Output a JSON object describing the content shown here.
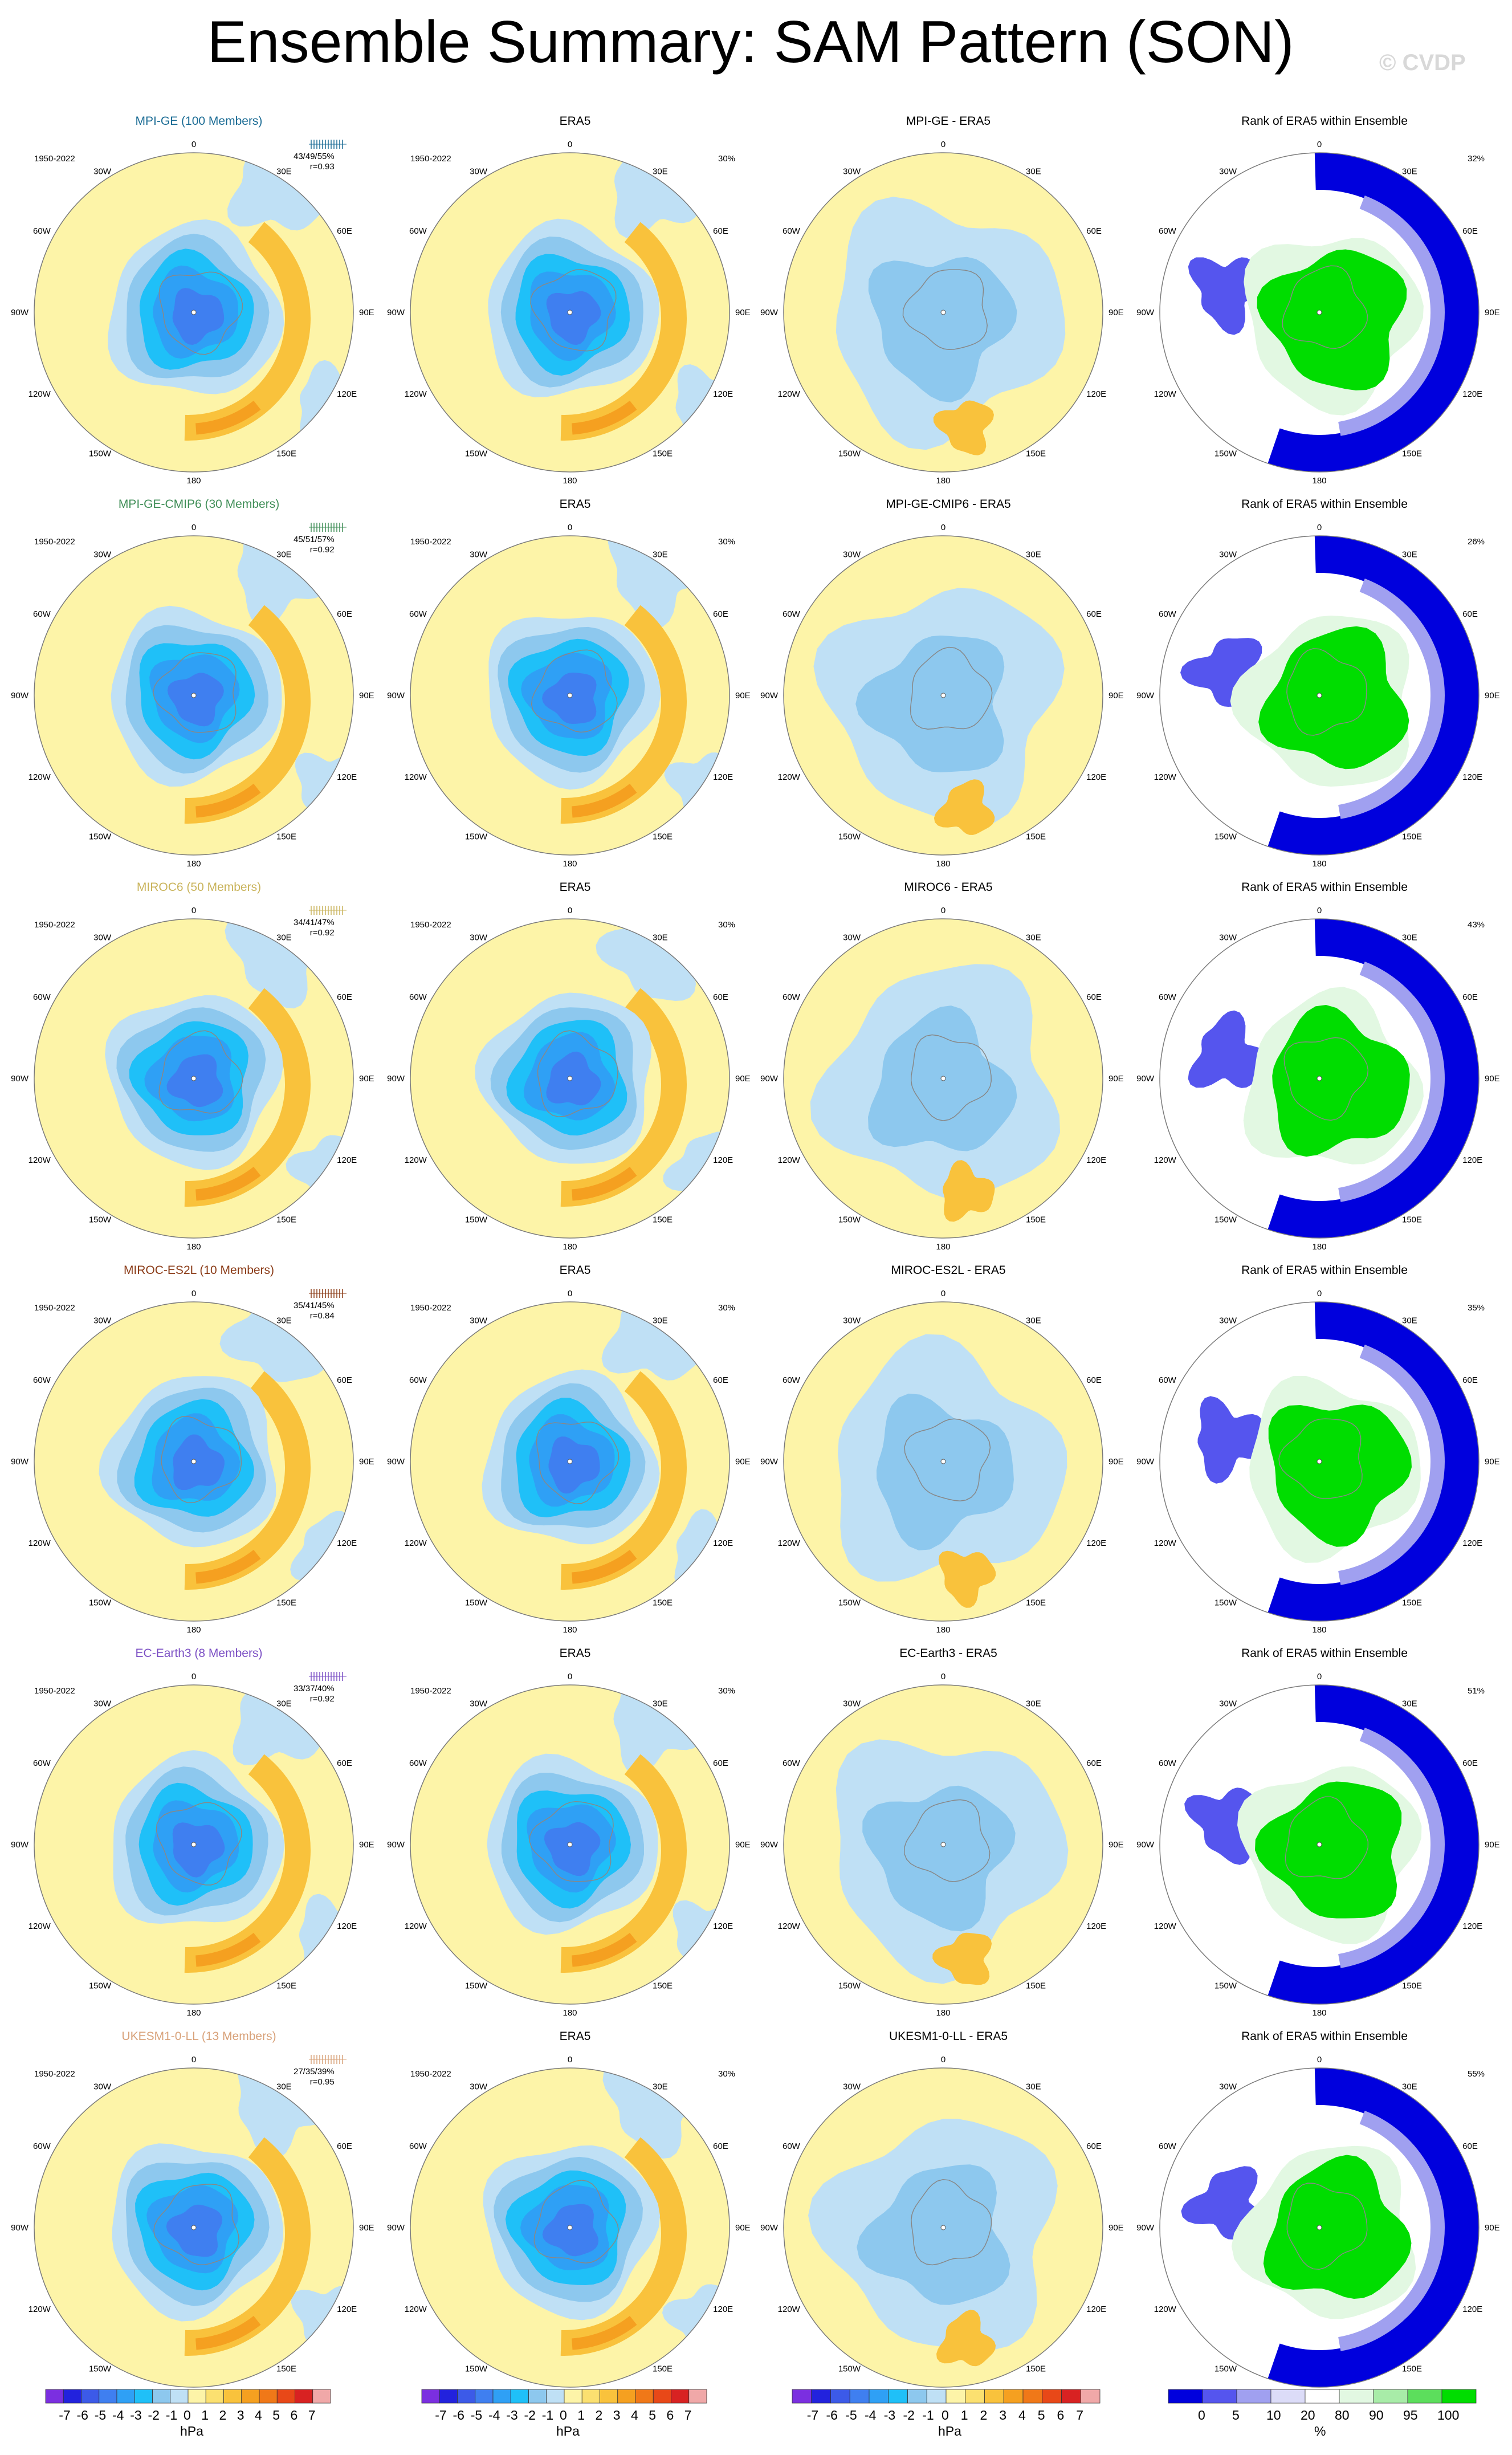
{
  "title": "Ensemble Summary: SAM Pattern (SON)",
  "watermark": "© CVDP",
  "period": "1950-2022",
  "map_labels": {
    "top": "0",
    "bottom": "180",
    "left": [
      "30W",
      "60W",
      "90W",
      "120W",
      "150W"
    ],
    "right": [
      "30E",
      "60E",
      "90E",
      "120E",
      "150E"
    ]
  },
  "rows": [
    {
      "model_title": "MPI-GE (100 Members)",
      "model_color": "#1a6b94",
      "stats": "43/49/55%",
      "corr": "r=0.93",
      "era5_title": "ERA5",
      "diff_title": "MPI-GE - ERA5",
      "rank_title": "Rank of ERA5 within Ensemble",
      "era5_pct": "30%",
      "rank_pct": "32%"
    },
    {
      "model_title": "MPI-GE-CMIP6 (30 Members)",
      "model_color": "#3f8e57",
      "stats": "45/51/57%",
      "corr": "r=0.92",
      "era5_title": "ERA5",
      "diff_title": "MPI-GE-CMIP6 - ERA5",
      "rank_title": "Rank of ERA5 within Ensemble",
      "era5_pct": "30%",
      "rank_pct": "26%"
    },
    {
      "model_title": "MIROC6 (50 Members)",
      "model_color": "#c9b35a",
      "stats": "34/41/47%",
      "corr": "r=0.92",
      "era5_title": "ERA5",
      "diff_title": "MIROC6 - ERA5",
      "rank_title": "Rank of ERA5 within Ensemble",
      "era5_pct": "30%",
      "rank_pct": "43%"
    },
    {
      "model_title": "MIROC-ES2L (10 Members)",
      "model_color": "#8a3a16",
      "stats": "35/41/45%",
      "corr": "r=0.84",
      "era5_title": "ERA5",
      "diff_title": "MIROC-ES2L - ERA5",
      "rank_title": "Rank of ERA5 within Ensemble",
      "era5_pct": "30%",
      "rank_pct": "35%"
    },
    {
      "model_title": "EC-Earth3 (8 Members)",
      "model_color": "#7b4fc4",
      "stats": "33/37/40%",
      "corr": "r=0.92",
      "era5_title": "ERA5",
      "diff_title": "EC-Earth3 - ERA5",
      "rank_title": "Rank of ERA5 within Ensemble",
      "era5_pct": "30%",
      "rank_pct": "51%"
    },
    {
      "model_title": "UKESM1-0-LL (13 Members)",
      "model_color": "#d8a27a",
      "stats": "27/35/39%",
      "corr": "r=0.95",
      "era5_title": "ERA5",
      "diff_title": "UKESM1-0-LL - ERA5",
      "rank_title": "Rank of ERA5 within Ensemble",
      "era5_pct": "30%",
      "rank_pct": "55%"
    }
  ],
  "colorbar_hpa": {
    "labels": [
      "-7",
      "-6",
      "-5",
      "-4",
      "-3",
      "-2",
      "-1",
      "0",
      "1",
      "2",
      "3",
      "4",
      "5",
      "6",
      "7"
    ],
    "unit": "hPa",
    "colors": [
      "#7b2fe0",
      "#2222dd",
      "#3c5ae8",
      "#3f7ff0",
      "#2fa0f5",
      "#1fc0f8",
      "#8dc8ee",
      "#bfe0f5",
      "#fdf4a8",
      "#fbe070",
      "#f9c23c",
      "#f5a020",
      "#f07818",
      "#e84818",
      "#d82222",
      "#f0a8a8"
    ]
  },
  "colorbar_rank": {
    "labels": [
      "0",
      "5",
      "10",
      "20",
      "80",
      "90",
      "95",
      "100"
    ],
    "unit": "%",
    "colors": [
      "#0000dd",
      "#5555ee",
      "#a0a0f0",
      "#dcdcf8",
      "#ffffff",
      "#e2f8e2",
      "#a8eca8",
      "#5cde5c",
      "#00dd00"
    ]
  }
}
